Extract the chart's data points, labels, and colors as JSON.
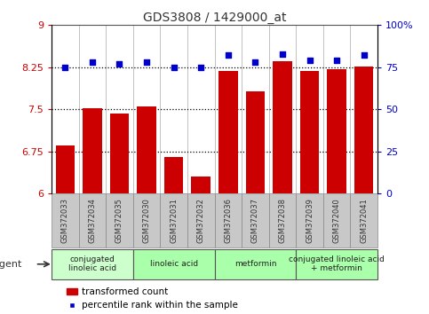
{
  "title": "GDS3808 / 1429000_at",
  "categories": [
    "GSM372033",
    "GSM372034",
    "GSM372035",
    "GSM372030",
    "GSM372031",
    "GSM372032",
    "GSM372036",
    "GSM372037",
    "GSM372038",
    "GSM372039",
    "GSM372040",
    "GSM372041"
  ],
  "bar_values": [
    6.85,
    7.52,
    7.42,
    7.55,
    6.65,
    6.3,
    8.18,
    7.82,
    8.35,
    8.18,
    8.22,
    8.27
  ],
  "percentile_values": [
    75,
    78,
    77,
    78,
    75,
    75,
    82,
    78,
    83,
    79,
    79,
    82
  ],
  "bar_color": "#cc0000",
  "dot_color": "#0000cc",
  "ylim_left": [
    6,
    9
  ],
  "ylim_right": [
    0,
    100
  ],
  "yticks_left": [
    6,
    6.75,
    7.5,
    8.25,
    9
  ],
  "ytick_labels_left": [
    "6",
    "6.75",
    "7.5",
    "8.25",
    "9"
  ],
  "yticks_right": [
    0,
    25,
    50,
    75,
    100
  ],
  "ytick_labels_right": [
    "0",
    "25",
    "50",
    "75",
    "100%"
  ],
  "hlines": [
    6.75,
    7.5,
    8.25
  ],
  "agent_groups": [
    {
      "label": "conjugated\nlinoleic acid",
      "start": 0,
      "end": 3,
      "color": "#ccffcc"
    },
    {
      "label": "linoleic acid",
      "start": 3,
      "end": 6,
      "color": "#aaffaa"
    },
    {
      "label": "metformin",
      "start": 6,
      "end": 9,
      "color": "#aaffaa"
    },
    {
      "label": "conjugated linoleic acid\n+ metformin",
      "start": 9,
      "end": 12,
      "color": "#aaffaa"
    }
  ],
  "legend_bar_label": "transformed count",
  "legend_dot_label": "percentile rank within the sample",
  "agent_label": "agent",
  "left_axis_color": "#cc0000",
  "right_axis_color": "#0000cc",
  "plot_bg_color": "#ffffff",
  "xtick_box_color": "#c8c8c8",
  "xtick_box_edge": "#888888"
}
